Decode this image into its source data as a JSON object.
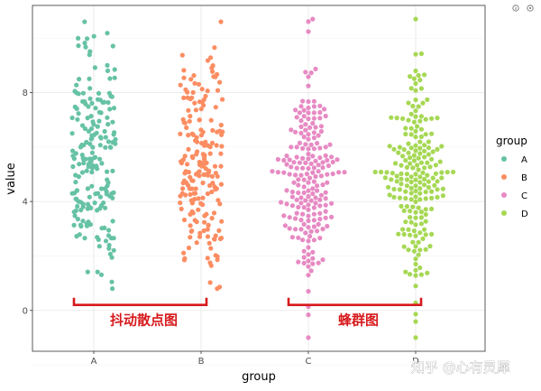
{
  "chart_data": {
    "type": "scatter",
    "xlabel": "group",
    "ylabel": "value",
    "categories": [
      "A",
      "B",
      "C",
      "D"
    ],
    "ylim": [
      -1.5,
      11.2
    ],
    "yticks": [
      0,
      4,
      8
    ],
    "grid": true,
    "legend": {
      "title": "group",
      "placement": "right",
      "entries": [
        "A",
        "B",
        "C",
        "D"
      ]
    },
    "colors": {
      "A": "#66c2a5",
      "B": "#fc8d62",
      "C": "#e78ac3",
      "D": "#a6d854"
    },
    "series": [
      {
        "group": "A",
        "layout": "jitter",
        "n": 200,
        "mean": 5.5,
        "sd": 2.3,
        "min": 0.8,
        "max": 10.6
      },
      {
        "group": "B",
        "layout": "jitter",
        "n": 200,
        "mean": 5.3,
        "sd": 2.3,
        "min": 0.8,
        "max": 10.6
      },
      {
        "group": "C",
        "layout": "beeswarm",
        "n": 200,
        "mean": 5.0,
        "sd": 2.0,
        "min": -1.0,
        "max": 10.7
      },
      {
        "group": "D",
        "layout": "beeswarm",
        "n": 200,
        "mean": 5.0,
        "sd": 2.0,
        "min": -1.0,
        "max": 10.7
      }
    ],
    "annotations": [
      {
        "text": "抖动散点图",
        "span": [
          "A",
          "B"
        ],
        "y": 0.2,
        "color": "#d7191c"
      },
      {
        "text": "蜂群图",
        "span": [
          "C",
          "D"
        ],
        "y": 0.2,
        "color": "#d7191c"
      }
    ]
  },
  "watermark": "知乎 @心有灵犀"
}
